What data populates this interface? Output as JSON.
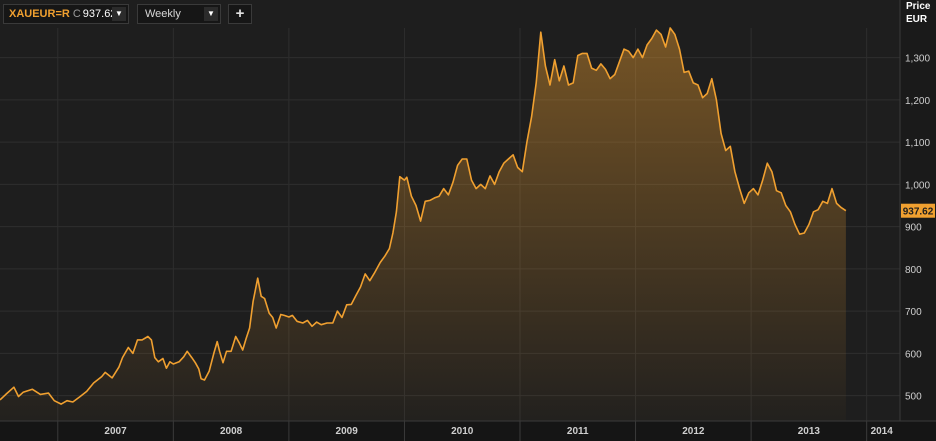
{
  "toolbar": {
    "symbol": "XAUEUR=R",
    "close_label": "C",
    "close_value": "937.62",
    "interval": "Weekly",
    "add_symbol": "+",
    "dropdown_icon": "triangle-down"
  },
  "chart_data": {
    "type": "area",
    "price_axis_title": "Price",
    "currency": "EUR",
    "y_ticks": [
      500,
      600,
      700,
      800,
      900,
      1000,
      1100,
      1200,
      1300
    ],
    "y_tick_labels": [
      "500",
      "600",
      "700",
      "800",
      "900",
      "1,000",
      "1,100",
      "1,200",
      "1,300"
    ],
    "ylim": [
      440,
      1370
    ],
    "x_labels": [
      "2007",
      "2008",
      "2009",
      "2010",
      "2011",
      "2012",
      "2013",
      "2014"
    ],
    "xlim": [
      2006.5,
      2014.15
    ],
    "grid": true,
    "current_value": 937.62,
    "current_value_label": "937.62",
    "colors": {
      "line": "#f0a030",
      "fill": "#f0a030",
      "background": "#1e1e1e",
      "grid": "#2e2e2e",
      "badge": "#f0a030"
    },
    "points": [
      [
        2006.5,
        490
      ],
      [
        2006.55,
        503
      ],
      [
        2006.62,
        520
      ],
      [
        2006.66,
        498
      ],
      [
        2006.7,
        508
      ],
      [
        2006.78,
        515
      ],
      [
        2006.85,
        503
      ],
      [
        2006.92,
        506
      ],
      [
        2006.97,
        488
      ],
      [
        2007.03,
        480
      ],
      [
        2007.08,
        488
      ],
      [
        2007.13,
        485
      ],
      [
        2007.19,
        497
      ],
      [
        2007.25,
        510
      ],
      [
        2007.31,
        530
      ],
      [
        2007.38,
        545
      ],
      [
        2007.41,
        555
      ],
      [
        2007.47,
        542
      ],
      [
        2007.53,
        568
      ],
      [
        2007.56,
        590
      ],
      [
        2007.61,
        614
      ],
      [
        2007.65,
        600
      ],
      [
        2007.69,
        632
      ],
      [
        2007.73,
        632
      ],
      [
        2007.78,
        640
      ],
      [
        2007.81,
        632
      ],
      [
        2007.84,
        590
      ],
      [
        2007.87,
        580
      ],
      [
        2007.91,
        588
      ],
      [
        2007.94,
        565
      ],
      [
        2007.97,
        580
      ],
      [
        2008.0,
        575
      ],
      [
        2008.05,
        580
      ],
      [
        2008.09,
        592
      ],
      [
        2008.12,
        605
      ],
      [
        2008.16,
        590
      ],
      [
        2008.19,
        578
      ],
      [
        2008.22,
        563
      ],
      [
        2008.24,
        540
      ],
      [
        2008.27,
        537
      ],
      [
        2008.31,
        558
      ],
      [
        2008.35,
        600
      ],
      [
        2008.38,
        628
      ],
      [
        2008.4,
        605
      ],
      [
        2008.43,
        578
      ],
      [
        2008.46,
        605
      ],
      [
        2008.5,
        605
      ],
      [
        2008.54,
        640
      ],
      [
        2008.57,
        625
      ],
      [
        2008.6,
        608
      ],
      [
        2008.63,
        635
      ],
      [
        2008.66,
        660
      ],
      [
        2008.69,
        723
      ],
      [
        2008.73,
        778
      ],
      [
        2008.76,
        735
      ],
      [
        2008.79,
        730
      ],
      [
        2008.83,
        695
      ],
      [
        2008.86,
        685
      ],
      [
        2008.89,
        660
      ],
      [
        2008.93,
        692
      ],
      [
        2008.96,
        690
      ],
      [
        2009.0,
        686
      ],
      [
        2009.03,
        690
      ],
      [
        2009.07,
        676
      ],
      [
        2009.12,
        672
      ],
      [
        2009.16,
        678
      ],
      [
        2009.2,
        664
      ],
      [
        2009.24,
        674
      ],
      [
        2009.28,
        668
      ],
      [
        2009.33,
        672
      ],
      [
        2009.38,
        672
      ],
      [
        2009.42,
        700
      ],
      [
        2009.46,
        685
      ],
      [
        2009.5,
        715
      ],
      [
        2009.54,
        716
      ],
      [
        2009.58,
        737
      ],
      [
        2009.62,
        757
      ],
      [
        2009.66,
        788
      ],
      [
        2009.7,
        772
      ],
      [
        2009.74,
        790
      ],
      [
        2009.79,
        815
      ],
      [
        2009.83,
        830
      ],
      [
        2009.87,
        848
      ],
      [
        2009.9,
        885
      ],
      [
        2009.93,
        935
      ],
      [
        2009.96,
        1018
      ],
      [
        2010.0,
        1010
      ],
      [
        2010.02,
        1017
      ],
      [
        2010.06,
        972
      ],
      [
        2010.1,
        950
      ],
      [
        2010.14,
        913
      ],
      [
        2010.18,
        960
      ],
      [
        2010.22,
        962
      ],
      [
        2010.26,
        968
      ],
      [
        2010.3,
        972
      ],
      [
        2010.34,
        990
      ],
      [
        2010.38,
        975
      ],
      [
        2010.42,
        1005
      ],
      [
        2010.46,
        1045
      ],
      [
        2010.5,
        1060
      ],
      [
        2010.54,
        1060
      ],
      [
        2010.58,
        1010
      ],
      [
        2010.62,
        990
      ],
      [
        2010.66,
        1000
      ],
      [
        2010.7,
        990
      ],
      [
        2010.74,
        1020
      ],
      [
        2010.78,
        1000
      ],
      [
        2010.82,
        1030
      ],
      [
        2010.86,
        1050
      ],
      [
        2010.9,
        1060
      ],
      [
        2010.94,
        1070
      ],
      [
        2010.98,
        1040
      ],
      [
        2011.02,
        1030
      ],
      [
        2011.06,
        1100
      ],
      [
        2011.1,
        1160
      ],
      [
        2011.14,
        1240
      ],
      [
        2011.18,
        1360
      ],
      [
        2011.22,
        1280
      ],
      [
        2011.26,
        1235
      ],
      [
        2011.3,
        1295
      ],
      [
        2011.34,
        1245
      ],
      [
        2011.38,
        1280
      ],
      [
        2011.42,
        1235
      ],
      [
        2011.46,
        1240
      ],
      [
        2011.5,
        1305
      ],
      [
        2011.54,
        1310
      ],
      [
        2011.58,
        1310
      ],
      [
        2011.62,
        1275
      ],
      [
        2011.66,
        1270
      ],
      [
        2011.7,
        1285
      ],
      [
        2011.74,
        1272
      ],
      [
        2011.78,
        1250
      ],
      [
        2011.82,
        1260
      ],
      [
        2011.86,
        1290
      ],
      [
        2011.9,
        1320
      ],
      [
        2011.94,
        1315
      ],
      [
        2011.98,
        1300
      ],
      [
        2012.02,
        1320
      ],
      [
        2012.06,
        1300
      ],
      [
        2012.1,
        1330
      ],
      [
        2012.14,
        1345
      ],
      [
        2012.18,
        1365
      ],
      [
        2012.22,
        1355
      ],
      [
        2012.26,
        1325
      ],
      [
        2012.3,
        1370
      ],
      [
        2012.34,
        1355
      ],
      [
        2012.38,
        1320
      ],
      [
        2012.42,
        1265
      ],
      [
        2012.46,
        1268
      ],
      [
        2012.5,
        1240
      ],
      [
        2012.54,
        1235
      ],
      [
        2012.58,
        1205
      ],
      [
        2012.62,
        1215
      ],
      [
        2012.66,
        1250
      ],
      [
        2012.7,
        1200
      ],
      [
        2012.74,
        1120
      ],
      [
        2012.78,
        1080
      ],
      [
        2012.82,
        1090
      ],
      [
        2012.86,
        1030
      ],
      [
        2012.9,
        990
      ],
      [
        2012.94,
        955
      ],
      [
        2012.98,
        980
      ],
      [
        2013.02,
        990
      ],
      [
        2013.06,
        975
      ],
      [
        2013.1,
        1010
      ],
      [
        2013.14,
        1050
      ],
      [
        2013.18,
        1030
      ],
      [
        2013.22,
        985
      ],
      [
        2013.26,
        980
      ],
      [
        2013.3,
        950
      ],
      [
        2013.34,
        935
      ],
      [
        2013.38,
        905
      ],
      [
        2013.42,
        882
      ],
      [
        2013.46,
        885
      ],
      [
        2013.5,
        905
      ],
      [
        2013.54,
        935
      ],
      [
        2013.58,
        940
      ],
      [
        2013.62,
        960
      ],
      [
        2013.66,
        955
      ],
      [
        2013.7,
        990
      ],
      [
        2013.74,
        955
      ],
      [
        2013.78,
        945
      ],
      [
        2013.82,
        937.62
      ]
    ]
  }
}
